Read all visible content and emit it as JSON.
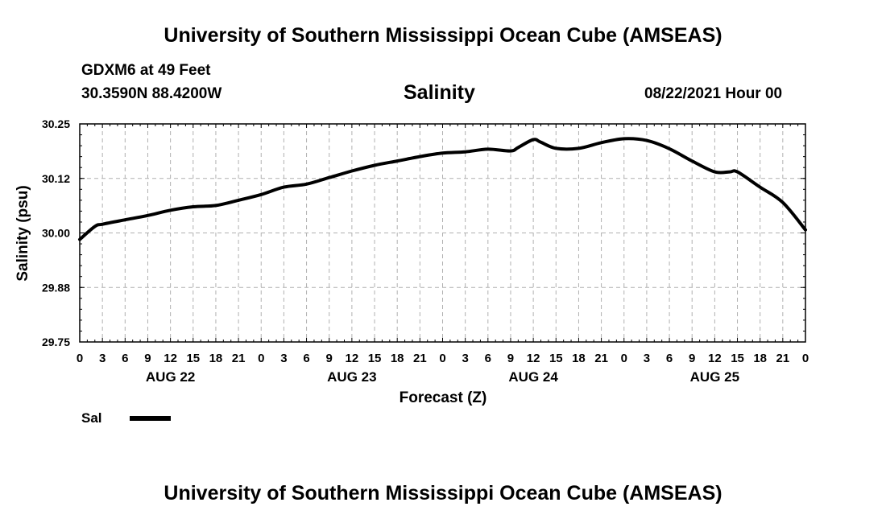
{
  "header": {
    "title": "University of Southern Mississippi Ocean Cube (AMSEAS)",
    "station": "GDXM6 at 49 Feet",
    "coords": "30.3590N  88.4200W",
    "valid": "08/22/2021 Hour 00"
  },
  "footer": {
    "title": "University of Southern Mississippi Ocean Cube (AMSEAS)"
  },
  "colors": {
    "line": "#000000",
    "grid": "#b0b0b0",
    "axis": "#000000"
  },
  "chart_data": {
    "type": "line",
    "title": "Salinity",
    "xlabel": "Forecast (Z)",
    "ylabel": "Salinity (psu)",
    "grid": true,
    "xlim": [
      0,
      96
    ],
    "ylim": [
      29.75,
      30.25
    ],
    "yticks": [
      "30.25",
      "30.12",
      "30.00",
      "29.88",
      "29.75"
    ],
    "ytick_values": [
      30.25,
      30.125,
      30.0,
      29.875,
      29.75
    ],
    "xtick_labels": [
      "0",
      "3",
      "6",
      "9",
      "12",
      "15",
      "18",
      "21",
      "0",
      "3",
      "6",
      "9",
      "12",
      "15",
      "18",
      "21",
      "0",
      "3",
      "6",
      "9",
      "12",
      "15",
      "18",
      "21",
      "0",
      "3",
      "6",
      "9",
      "12",
      "15",
      "18",
      "21",
      "0"
    ],
    "day_labels": [
      {
        "label": "AUG 22",
        "hour": 12
      },
      {
        "label": "AUG 23",
        "hour": 36
      },
      {
        "label": "AUG 24",
        "hour": 60
      },
      {
        "label": "AUG 25",
        "hour": 84
      }
    ],
    "legend": {
      "label": "Sal",
      "placement": "bottom-left"
    },
    "series": [
      {
        "name": "Sal",
        "x": [
          0,
          2,
          3,
          6,
          9,
          12,
          15,
          18,
          21,
          24,
          27,
          30,
          33,
          36,
          39,
          42,
          45,
          48,
          51,
          54,
          57,
          58,
          60,
          61,
          63,
          66,
          69,
          72,
          75,
          78,
          81,
          84,
          86,
          87,
          90,
          93,
          96
        ],
        "y": [
          29.985,
          30.015,
          30.02,
          30.03,
          30.04,
          30.052,
          30.06,
          30.063,
          30.075,
          30.088,
          30.105,
          30.112,
          30.127,
          30.142,
          30.155,
          30.165,
          30.175,
          30.183,
          30.186,
          30.192,
          30.188,
          30.196,
          30.214,
          30.208,
          30.194,
          30.194,
          30.207,
          30.216,
          30.212,
          30.193,
          30.165,
          30.14,
          30.14,
          30.14,
          30.105,
          30.07,
          30.007
        ]
      }
    ]
  }
}
